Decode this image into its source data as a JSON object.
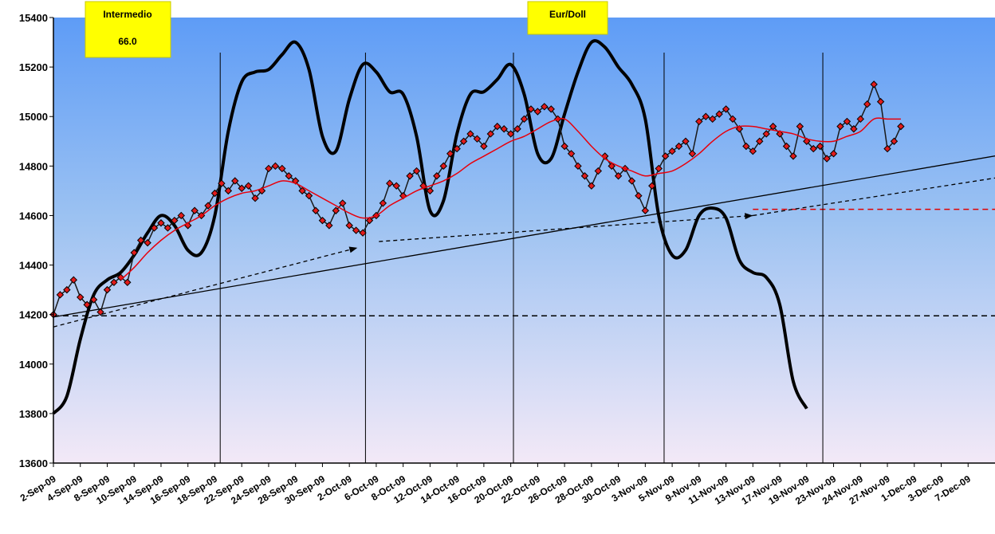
{
  "chart_data": {
    "type": "line",
    "title": "Eur/Doll",
    "info_box": {
      "label": "Intermedio",
      "value": "66.0"
    },
    "ylim": [
      13600,
      15400
    ],
    "y_ticks": [
      "13600",
      "13800",
      "14000",
      "14200",
      "14400",
      "14600",
      "14800",
      "15000",
      "15200",
      "15400"
    ],
    "x_ticks": [
      "2-Sep-09",
      "4-Sep-09",
      "8-Sep-09",
      "10-Sep-09",
      "14-Sep-09",
      "16-Sep-09",
      "18-Sep-09",
      "22-Sep-09",
      "24-Sep-09",
      "28-Sep-09",
      "30-Sep-09",
      "2-Oct-09",
      "6-Oct-09",
      "8-Oct-09",
      "12-Oct-09",
      "14-Oct-09",
      "16-Oct-09",
      "20-Oct-09",
      "22-Oct-09",
      "26-Oct-09",
      "28-Oct-09",
      "30-Oct-09",
      "3-Nov-09",
      "5-Nov-09",
      "9-Nov-09",
      "11-Nov-09",
      "13-Nov-09",
      "17-Nov-09",
      "19-Nov-09",
      "23-Nov-09",
      "24-Nov-09",
      "27-Nov-09",
      "1-Dec-09",
      "3-Dec-09",
      "7-Dec-09"
    ],
    "series": [
      {
        "values": [
          [
            0,
            14200
          ],
          [
            0.25,
            14280
          ],
          [
            0.5,
            14300
          ],
          [
            0.75,
            14340
          ],
          [
            1,
            14270
          ],
          [
            1.25,
            14240
          ],
          [
            1.5,
            14260
          ],
          [
            1.75,
            14210
          ],
          [
            2,
            14300
          ],
          [
            2.25,
            14330
          ],
          [
            2.5,
            14350
          ],
          [
            2.75,
            14330
          ],
          [
            3,
            14450
          ],
          [
            3.25,
            14500
          ],
          [
            3.5,
            14490
          ],
          [
            3.75,
            14550
          ],
          [
            4,
            14570
          ],
          [
            4.25,
            14550
          ],
          [
            4.5,
            14580
          ],
          [
            4.75,
            14600
          ],
          [
            5,
            14560
          ],
          [
            5.25,
            14620
          ],
          [
            5.5,
            14600
          ],
          [
            5.75,
            14640
          ],
          [
            6,
            14690
          ],
          [
            6.25,
            14730
          ],
          [
            6.5,
            14700
          ],
          [
            6.75,
            14740
          ],
          [
            7,
            14710
          ],
          [
            7.25,
            14720
          ],
          [
            7.5,
            14670
          ],
          [
            7.75,
            14700
          ],
          [
            8,
            14790
          ],
          [
            8.25,
            14800
          ],
          [
            8.5,
            14790
          ],
          [
            8.75,
            14760
          ],
          [
            9,
            14740
          ],
          [
            9.25,
            14700
          ],
          [
            9.5,
            14680
          ],
          [
            9.75,
            14620
          ],
          [
            10,
            14580
          ],
          [
            10.25,
            14560
          ],
          [
            10.5,
            14620
          ],
          [
            10.75,
            14650
          ],
          [
            11,
            14560
          ],
          [
            11.25,
            14540
          ],
          [
            11.5,
            14530
          ],
          [
            11.75,
            14580
          ],
          [
            12,
            14600
          ],
          [
            12.25,
            14650
          ],
          [
            12.5,
            14730
          ],
          [
            12.75,
            14720
          ],
          [
            13,
            14680
          ],
          [
            13.25,
            14760
          ],
          [
            13.5,
            14780
          ],
          [
            13.75,
            14720
          ],
          [
            14,
            14700
          ],
          [
            14.25,
            14760
          ],
          [
            14.5,
            14800
          ],
          [
            14.75,
            14850
          ],
          [
            15,
            14870
          ],
          [
            15.25,
            14900
          ],
          [
            15.5,
            14930
          ],
          [
            15.75,
            14910
          ],
          [
            16,
            14880
          ],
          [
            16.25,
            14930
          ],
          [
            16.5,
            14960
          ],
          [
            16.75,
            14950
          ],
          [
            17,
            14930
          ],
          [
            17.25,
            14950
          ],
          [
            17.5,
            14990
          ],
          [
            17.75,
            15030
          ],
          [
            18,
            15020
          ],
          [
            18.25,
            15040
          ],
          [
            18.5,
            15030
          ],
          [
            18.75,
            14990
          ],
          [
            19,
            14880
          ],
          [
            19.25,
            14850
          ],
          [
            19.5,
            14800
          ],
          [
            19.75,
            14760
          ],
          [
            20,
            14720
          ],
          [
            20.25,
            14780
          ],
          [
            20.5,
            14840
          ],
          [
            20.75,
            14800
          ],
          [
            21,
            14760
          ],
          [
            21.25,
            14790
          ],
          [
            21.5,
            14740
          ],
          [
            21.75,
            14680
          ],
          [
            22,
            14620
          ],
          [
            22.25,
            14720
          ],
          [
            22.5,
            14790
          ],
          [
            22.75,
            14840
          ],
          [
            23,
            14860
          ],
          [
            23.25,
            14880
          ],
          [
            23.5,
            14900
          ],
          [
            23.75,
            14850
          ],
          [
            24,
            14980
          ],
          [
            24.25,
            15000
          ],
          [
            24.5,
            14990
          ],
          [
            24.75,
            15010
          ],
          [
            25,
            15030
          ],
          [
            25.25,
            14990
          ],
          [
            25.5,
            14950
          ],
          [
            25.75,
            14880
          ],
          [
            26,
            14860
          ],
          [
            26.25,
            14900
          ],
          [
            26.5,
            14930
          ],
          [
            26.75,
            14960
          ],
          [
            27,
            14930
          ],
          [
            27.25,
            14880
          ],
          [
            27.5,
            14840
          ],
          [
            27.75,
            14960
          ],
          [
            28,
            14900
          ],
          [
            28.25,
            14870
          ],
          [
            28.5,
            14880
          ],
          [
            28.75,
            14830
          ],
          [
            29,
            14850
          ],
          [
            29.25,
            14960
          ],
          [
            29.5,
            14980
          ],
          [
            29.75,
            14950
          ],
          [
            30,
            14990
          ],
          [
            30.25,
            15050
          ],
          [
            30.5,
            15130
          ],
          [
            30.75,
            15060
          ],
          [
            31,
            14870
          ],
          [
            31.25,
            14900
          ],
          [
            31.5,
            14960
          ]
        ]
      },
      {
        "values": [
          [
            2.5,
            14340
          ],
          [
            3,
            14390
          ],
          [
            3.5,
            14450
          ],
          [
            4,
            14500
          ],
          [
            4.5,
            14540
          ],
          [
            5,
            14570
          ],
          [
            5.5,
            14600
          ],
          [
            6,
            14640
          ],
          [
            6.5,
            14670
          ],
          [
            7,
            14690
          ],
          [
            7.5,
            14700
          ],
          [
            8,
            14720
          ],
          [
            8.5,
            14740
          ],
          [
            9,
            14730
          ],
          [
            9.5,
            14700
          ],
          [
            10,
            14670
          ],
          [
            10.5,
            14640
          ],
          [
            11,
            14610
          ],
          [
            11.5,
            14590
          ],
          [
            12,
            14600
          ],
          [
            12.5,
            14640
          ],
          [
            13,
            14670
          ],
          [
            13.5,
            14700
          ],
          [
            14,
            14720
          ],
          [
            14.5,
            14740
          ],
          [
            15,
            14770
          ],
          [
            15.5,
            14810
          ],
          [
            16,
            14840
          ],
          [
            16.5,
            14870
          ],
          [
            17,
            14900
          ],
          [
            17.5,
            14920
          ],
          [
            18,
            14950
          ],
          [
            18.5,
            14980
          ],
          [
            19,
            14990
          ],
          [
            19.5,
            14940
          ],
          [
            20,
            14880
          ],
          [
            20.5,
            14830
          ],
          [
            21,
            14800
          ],
          [
            21.5,
            14780
          ],
          [
            22,
            14760
          ],
          [
            22.5,
            14770
          ],
          [
            23,
            14780
          ],
          [
            23.5,
            14810
          ],
          [
            24,
            14850
          ],
          [
            24.5,
            14900
          ],
          [
            25,
            14940
          ],
          [
            25.5,
            14960
          ],
          [
            26,
            14960
          ],
          [
            26.5,
            14950
          ],
          [
            27,
            14940
          ],
          [
            27.5,
            14930
          ],
          [
            28,
            14910
          ],
          [
            28.5,
            14900
          ],
          [
            29,
            14900
          ],
          [
            29.5,
            14920
          ],
          [
            30,
            14940
          ],
          [
            30.5,
            14990
          ],
          [
            31,
            14990
          ],
          [
            31.5,
            14990
          ]
        ]
      },
      {
        "values": [
          [
            0,
            13800
          ],
          [
            0.5,
            13870
          ],
          [
            1,
            14100
          ],
          [
            1.5,
            14280
          ],
          [
            2,
            14340
          ],
          [
            2.5,
            14370
          ],
          [
            3,
            14440
          ],
          [
            3.5,
            14530
          ],
          [
            4,
            14600
          ],
          [
            4.5,
            14560
          ],
          [
            5,
            14460
          ],
          [
            5.5,
            14450
          ],
          [
            6,
            14600
          ],
          [
            6.5,
            14940
          ],
          [
            7,
            15140
          ],
          [
            7.5,
            15180
          ],
          [
            8,
            15190
          ],
          [
            8.5,
            15250
          ],
          [
            9,
            15300
          ],
          [
            9.5,
            15190
          ],
          [
            10,
            14920
          ],
          [
            10.5,
            14860
          ],
          [
            11,
            15070
          ],
          [
            11.5,
            15210
          ],
          [
            12,
            15180
          ],
          [
            12.5,
            15100
          ],
          [
            13,
            15090
          ],
          [
            13.5,
            14920
          ],
          [
            14,
            14620
          ],
          [
            14.5,
            14660
          ],
          [
            15,
            14930
          ],
          [
            15.5,
            15090
          ],
          [
            16,
            15100
          ],
          [
            16.5,
            15150
          ],
          [
            17,
            15210
          ],
          [
            17.5,
            15090
          ],
          [
            18,
            14850
          ],
          [
            18.5,
            14830
          ],
          [
            19,
            15010
          ],
          [
            19.5,
            15180
          ],
          [
            20,
            15300
          ],
          [
            20.5,
            15280
          ],
          [
            21,
            15200
          ],
          [
            21.5,
            15130
          ],
          [
            22,
            14990
          ],
          [
            22.5,
            14600
          ],
          [
            23,
            14440
          ],
          [
            23.5,
            14460
          ],
          [
            24,
            14600
          ],
          [
            24.5,
            14630
          ],
          [
            25,
            14590
          ],
          [
            25.5,
            14420
          ],
          [
            26,
            14370
          ],
          [
            26.5,
            14350
          ],
          [
            27,
            14240
          ],
          [
            27.5,
            13930
          ],
          [
            28,
            13820
          ]
        ]
      }
    ],
    "reference_lines": [
      {
        "type": "horizontal",
        "y": 14195
      },
      {
        "type": "horizontal",
        "y": 14625
      }
    ],
    "trend_lines": [
      {
        "from": [
          0,
          14190
        ],
        "to": [
          35.5,
          14850
        ]
      },
      {
        "from": [
          0,
          14150
        ],
        "to": [
          11.3,
          14470
        ]
      },
      {
        "from": [
          12.1,
          14495
        ],
        "to": [
          26.0,
          14600
        ]
      },
      {
        "from": [
          26.0,
          14600
        ],
        "to": [
          35.5,
          14760
        ]
      }
    ],
    "vertical_markers": [
      6.2,
      11.6,
      17.1,
      22.7,
      28.6
    ],
    "grid": false,
    "legend": "none"
  }
}
